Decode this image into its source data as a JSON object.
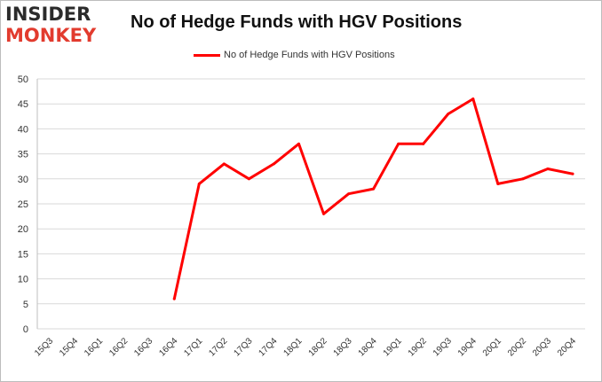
{
  "logo": {
    "line1": "INSIDER",
    "line2": "MONKEY"
  },
  "colors": {
    "series": "#ff0000",
    "grid": "#d9d9d9",
    "logo_dark": "#2b2b2b",
    "logo_red": "#e23b2e"
  },
  "chart_data": {
    "type": "line",
    "title": "No of Hedge Funds with HGV Positions",
    "xlabel": "",
    "ylabel": "",
    "ylim": [
      0,
      50
    ],
    "yticks": [
      0,
      5,
      10,
      15,
      20,
      25,
      30,
      35,
      40,
      45,
      50
    ],
    "grid": true,
    "legend_position": "top-center",
    "categories": [
      "15Q3",
      "15Q4",
      "16Q1",
      "16Q2",
      "16Q3",
      "16Q4",
      "17Q1",
      "17Q2",
      "17Q3",
      "17Q4",
      "18Q1",
      "18Q2",
      "18Q3",
      "18Q4",
      "19Q1",
      "19Q2",
      "19Q3",
      "19Q4",
      "20Q1",
      "20Q2",
      "20Q3",
      "20Q4"
    ],
    "series": [
      {
        "name": "No of Hedge Funds with HGV Positions",
        "values": [
          null,
          null,
          null,
          null,
          null,
          6,
          29,
          33,
          30,
          33,
          37,
          23,
          27,
          28,
          37,
          37,
          43,
          46,
          29,
          30,
          32,
          31
        ]
      }
    ]
  }
}
